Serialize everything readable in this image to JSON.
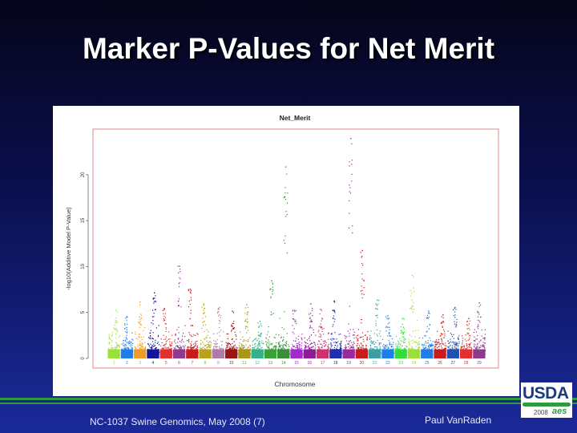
{
  "slide": {
    "title": "Marker P-Values for Net Merit",
    "footer_left": "NC-1037 Swine Genomics, May 2008 (7)",
    "footer_right": "Paul VanRaden",
    "logo": {
      "text": "USDA",
      "year": "2008",
      "subtext": "aes"
    }
  },
  "chart_data": {
    "type": "scatter",
    "title": "Net_Merit",
    "xlabel": "Chromosome",
    "ylabel": "-log10(Additive Model P-Value)",
    "ylim": [
      0,
      24
    ],
    "yticks": [
      0,
      5,
      10,
      15,
      20
    ],
    "categories": [
      "1",
      "2",
      "3",
      "4",
      "5",
      "6",
      "7",
      "8",
      "9",
      "10",
      "11",
      "12",
      "13",
      "14",
      "15",
      "16",
      "17",
      "18",
      "19",
      "20",
      "21",
      "22",
      "23",
      "24",
      "25",
      "26",
      "27",
      "28",
      "29"
    ],
    "chromosome_colors": [
      "#9be03a",
      "#1f7ee8",
      "#f09a28",
      "#13149a",
      "#e23030",
      "#8e3a8e",
      "#c81c1c",
      "#b8a21c",
      "#b07aa6",
      "#9a1414",
      "#a8961a",
      "#36b08a",
      "#3aa03a",
      "#3a8e3a",
      "#a32aca",
      "#8e1a9a",
      "#d03070",
      "#202fb0",
      "#9a2a9a",
      "#c81c1c",
      "#3aa0a0",
      "#1f7ee8",
      "#33dd3a",
      "#9be03a",
      "#1f7ee8",
      "#c81c1c",
      "#2050b0",
      "#e23030",
      "#8e3a8e"
    ],
    "peaks": [
      {
        "chromosome": "1",
        "value": 5.3
      },
      {
        "chromosome": "2",
        "value": 4.6
      },
      {
        "chromosome": "3",
        "value": 6.2
      },
      {
        "chromosome": "4",
        "value": 7.2
      },
      {
        "chromosome": "5",
        "value": 5.5
      },
      {
        "chromosome": "6",
        "value": 10.1
      },
      {
        "chromosome": "7",
        "value": 7.6
      },
      {
        "chromosome": "8",
        "value": 6.0
      },
      {
        "chromosome": "9",
        "value": 5.6
      },
      {
        "chromosome": "10",
        "value": 5.2
      },
      {
        "chromosome": "11",
        "value": 5.9
      },
      {
        "chromosome": "12",
        "value": 4.1
      },
      {
        "chromosome": "13",
        "value": 8.5
      },
      {
        "chromosome": "14",
        "value": 20.9
      },
      {
        "chromosome": "15",
        "value": 5.3
      },
      {
        "chromosome": "16",
        "value": 6.0
      },
      {
        "chromosome": "17",
        "value": 5.4
      },
      {
        "chromosome": "18",
        "value": 6.3
      },
      {
        "chromosome": "19",
        "value": 24.0
      },
      {
        "chromosome": "20",
        "value": 11.8
      },
      {
        "chromosome": "21",
        "value": 6.4
      },
      {
        "chromosome": "22",
        "value": 4.7
      },
      {
        "chromosome": "23",
        "value": 4.4
      },
      {
        "chromosome": "24",
        "value": 9.1
      },
      {
        "chromosome": "25",
        "value": 5.2
      },
      {
        "chromosome": "26",
        "value": 4.8
      },
      {
        "chromosome": "27",
        "value": 5.6
      },
      {
        "chromosome": "28",
        "value": 4.4
      },
      {
        "chromosome": "29",
        "value": 6.1
      }
    ],
    "grid": false,
    "legend": "none"
  }
}
